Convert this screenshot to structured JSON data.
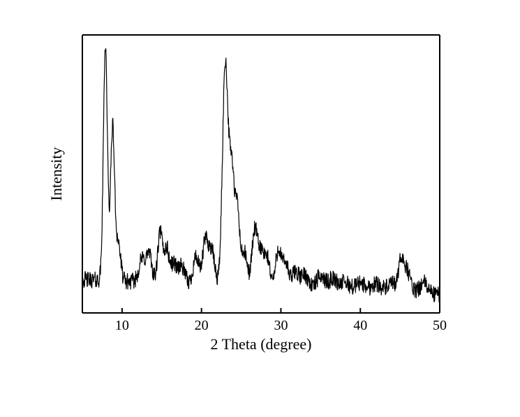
{
  "chart": {
    "type": "line",
    "xlabel": "2 Theta (degree)",
    "ylabel": "Intensity",
    "xlim": [
      5,
      50
    ],
    "ylim": [
      0,
      100
    ],
    "xtick_values": [
      10,
      20,
      30,
      40,
      50
    ],
    "xtick_labels": [
      "10",
      "20",
      "30",
      "40",
      "50"
    ],
    "label_fontsize": 22,
    "tick_fontsize": 20,
    "line_color": "#000000",
    "line_width": 1.2,
    "background_color": "#ffffff",
    "axis_color": "#000000",
    "axis_width": 2,
    "tick_length": 7,
    "noise_amplitude": 3.0,
    "baseline": 12,
    "peaks": [
      {
        "x": 7.9,
        "h": 85,
        "w": 0.25
      },
      {
        "x": 8.8,
        "h": 55,
        "w": 0.25
      },
      {
        "x": 9.5,
        "h": 14,
        "w": 0.3
      },
      {
        "x": 12.5,
        "h": 8,
        "w": 0.4
      },
      {
        "x": 13.4,
        "h": 10,
        "w": 0.35
      },
      {
        "x": 14.8,
        "h": 18,
        "w": 0.3
      },
      {
        "x": 15.6,
        "h": 12,
        "w": 0.3
      },
      {
        "x": 16.5,
        "h": 7,
        "w": 0.4
      },
      {
        "x": 17.5,
        "h": 6,
        "w": 0.4
      },
      {
        "x": 19.3,
        "h": 10,
        "w": 0.35
      },
      {
        "x": 20.5,
        "h": 16,
        "w": 0.35
      },
      {
        "x": 21.3,
        "h": 12,
        "w": 0.35
      },
      {
        "x": 23.0,
        "h": 80,
        "w": 0.35
      },
      {
        "x": 23.8,
        "h": 40,
        "w": 0.3
      },
      {
        "x": 24.5,
        "h": 28,
        "w": 0.3
      },
      {
        "x": 25.4,
        "h": 12,
        "w": 0.35
      },
      {
        "x": 26.7,
        "h": 20,
        "w": 0.35
      },
      {
        "x": 27.5,
        "h": 12,
        "w": 0.35
      },
      {
        "x": 28.3,
        "h": 10,
        "w": 0.35
      },
      {
        "x": 29.7,
        "h": 14,
        "w": 0.35
      },
      {
        "x": 30.6,
        "h": 9,
        "w": 0.35
      },
      {
        "x": 31.8,
        "h": 6,
        "w": 0.4
      },
      {
        "x": 33.0,
        "h": 5,
        "w": 0.5
      },
      {
        "x": 35.0,
        "h": 5,
        "w": 0.5
      },
      {
        "x": 36.5,
        "h": 4,
        "w": 0.5
      },
      {
        "x": 38.0,
        "h": 3,
        "w": 0.6
      },
      {
        "x": 40.0,
        "h": 3,
        "w": 0.6
      },
      {
        "x": 42.0,
        "h": 3,
        "w": 0.6
      },
      {
        "x": 44.0,
        "h": 3,
        "w": 0.6
      },
      {
        "x": 45.2,
        "h": 12,
        "w": 0.35
      },
      {
        "x": 46.0,
        "h": 7,
        "w": 0.4
      },
      {
        "x": 48.0,
        "h": 4,
        "w": 0.5
      }
    ]
  }
}
